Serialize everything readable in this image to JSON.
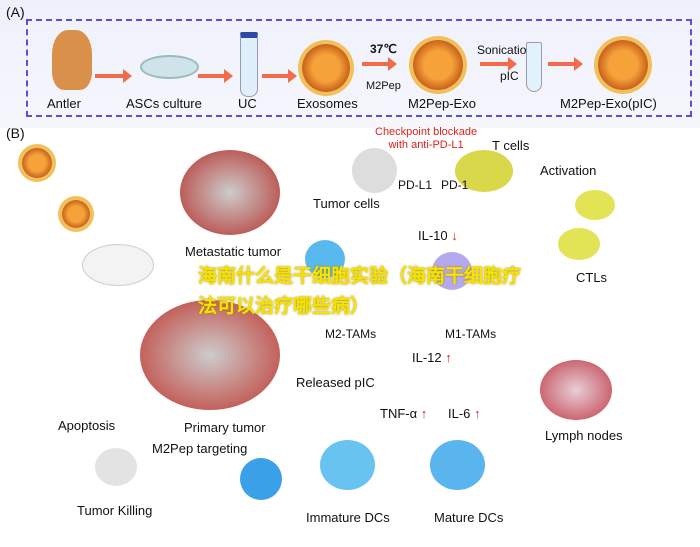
{
  "panel_a": {
    "label": "(A)",
    "steps": [
      "Antler",
      "ASCs culture",
      "UC",
      "Exosomes",
      "M2Pep-Exo",
      "M2Pep-Exo(pIC)"
    ],
    "condition_temp": "37℃",
    "condition_peptide": "M2Pep",
    "sonication": "Sonication",
    "pic": "pIC"
  },
  "panel_b": {
    "label": "(B)",
    "checkpoint": "Checkpoint blockade\nwith anti-PD-L1",
    "t_cells": "T cells",
    "pd_l1": "PD-L1",
    "pd_1": "PD-1",
    "tumor_cells": "Tumor cells",
    "metastatic_tumor": "Metastatic tumor",
    "activation": "Activation",
    "il10": "IL-10",
    "m2_tams": "M2-TAMs",
    "m1_tams": "M1-TAMs",
    "ctls": "CTLs",
    "il12": "IL-12",
    "released_pic": "Released pIC",
    "tnf": "TNF-α",
    "il6": "IL-6",
    "primary_tumor": "Primary tumor",
    "m2pep_targeting": "M2Pep targeting",
    "apoptosis": "Apoptosis",
    "tumor_killing": "Tumor Killing",
    "immature_dcs": "Immature DCs",
    "mature_dcs": "Mature DCs",
    "lymph_nodes": "Lymph nodes",
    "up_arrow": "↑",
    "down_arrow": "↓"
  },
  "watermark": "海南什么是干细胞实验（海南干细胞疗法可以治疗哪些病）"
}
